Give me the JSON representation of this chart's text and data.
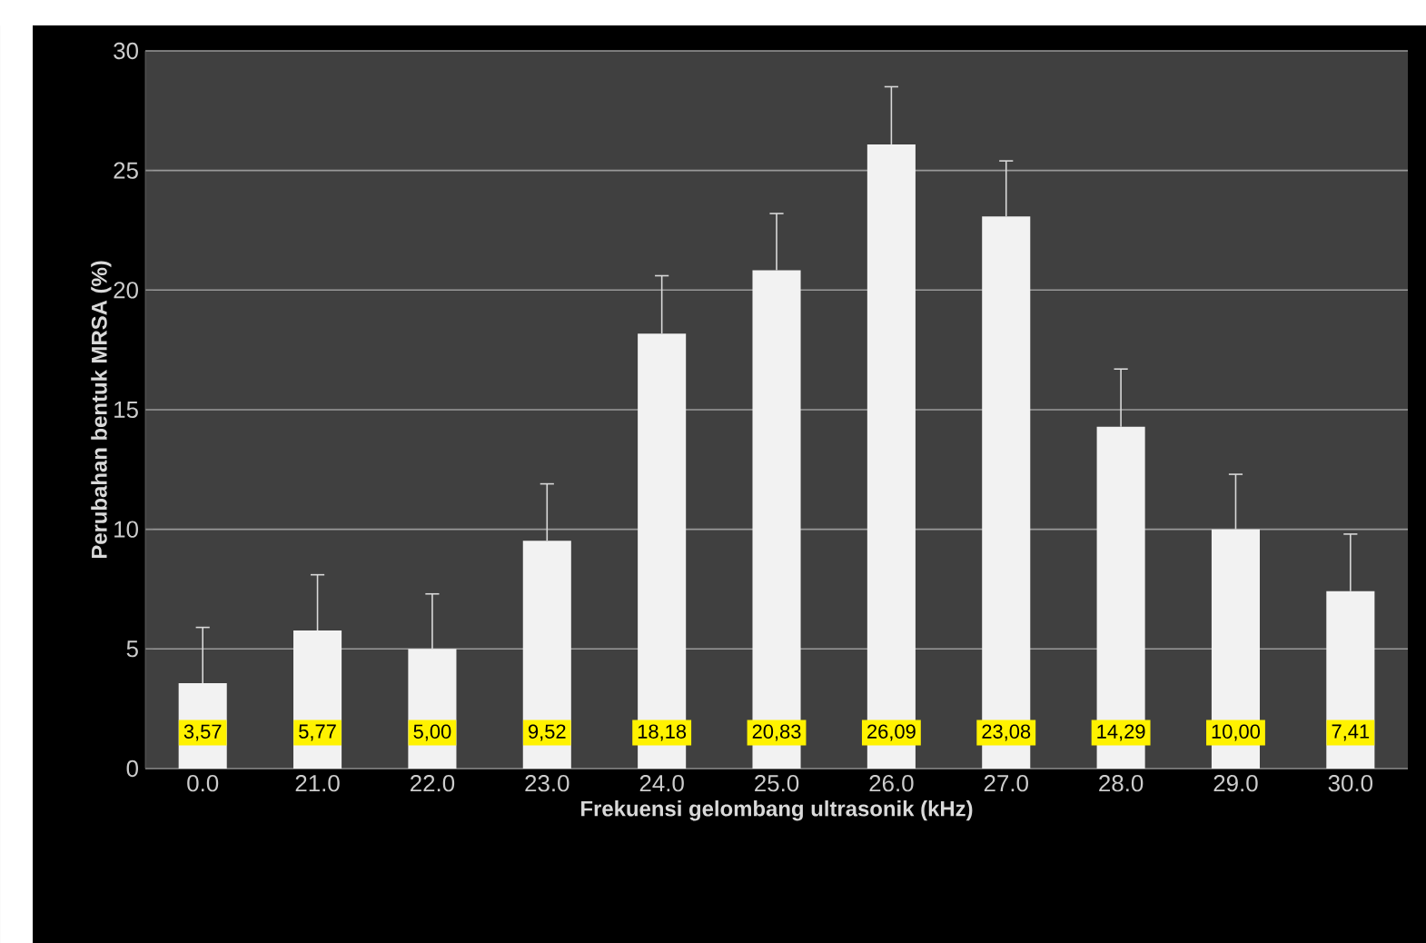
{
  "chart_data": {
    "type": "bar",
    "xlabel": "Frekuensi gelombang ultrasonik (kHz)",
    "ylabel": "Perubahan bentuk MRSA (%)",
    "categories": [
      "0.0",
      "21.0",
      "22.0",
      "23.0",
      "24.0",
      "25.0",
      "26.0",
      "27.0",
      "28.0",
      "29.0",
      "30.0"
    ],
    "values": [
      3.57,
      5.77,
      5.0,
      9.52,
      18.18,
      20.83,
      26.09,
      23.08,
      14.29,
      10.0,
      7.41
    ],
    "value_labels": [
      "3,57",
      "5,77",
      "5,00",
      "9,52",
      "18,18",
      "20,83",
      "26,09",
      "23,08",
      "14,29",
      "10,00",
      "7,41"
    ],
    "errors": [
      [
        3.57,
        5.9
      ],
      [
        5.77,
        8.1
      ],
      [
        5.0,
        7.3
      ],
      [
        9.52,
        11.9
      ],
      [
        18.18,
        20.6
      ],
      [
        20.83,
        23.2
      ],
      [
        26.09,
        28.5
      ],
      [
        23.08,
        25.4
      ],
      [
        14.29,
        16.7
      ],
      [
        10.0,
        12.3
      ],
      [
        7.41,
        9.8
      ]
    ],
    "color": "#f2f2f2",
    "ylim": [
      0,
      30
    ],
    "yticks": [
      0,
      5,
      10,
      15,
      20,
      25,
      30
    ],
    "grid": "y"
  }
}
